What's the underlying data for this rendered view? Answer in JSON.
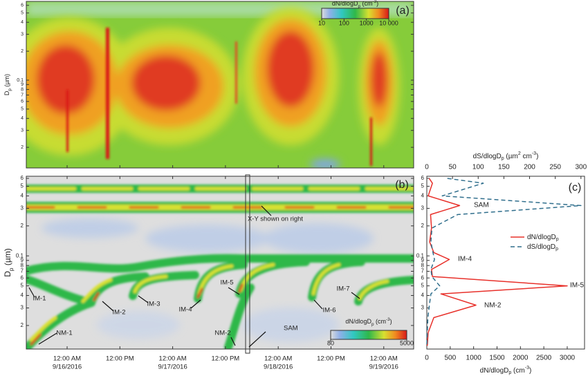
{
  "chart_data": [
    {
      "type": "heatmap",
      "panel": "(a)",
      "ylabel": [
        "D",
        "p",
        " (µm)"
      ],
      "yscale": "log",
      "ylim": [
        0.0122,
        0.66
      ],
      "yticks": [
        {
          "value": 0.02,
          "label": "2"
        },
        {
          "value": 0.03,
          "label": "3"
        },
        {
          "value": 0.04,
          "label": "4"
        },
        {
          "value": 0.05,
          "label": "5"
        },
        {
          "value": 0.06,
          "label": "6"
        },
        {
          "value": 0.07,
          "label": "7"
        },
        {
          "value": 0.08,
          "label": "8"
        },
        {
          "value": 0.09,
          "label": "9"
        },
        0.1,
        {
          "value": 0.2,
          "label": "2"
        },
        {
          "value": 0.3,
          "label": "3"
        },
        {
          "value": 0.4,
          "label": "4"
        },
        {
          "value": 0.5,
          "label": "5"
        },
        {
          "value": 0.6,
          "label": "6"
        }
      ],
      "colorbar": {
        "label": [
          "dN/dlogD",
          "p",
          " (cm",
          "-3",
          ")"
        ],
        "lim": [
          10,
          10000
        ],
        "ticks": [
          10,
          100,
          1000,
          {
            "value": 10000,
            "label": "10 000"
          }
        ]
      }
    },
    {
      "type": "heatmap",
      "panel": "(b)",
      "ylabel": [
        "D",
        "p",
        " (µm)"
      ],
      "yscale": "log",
      "ylim": [
        0.0116,
        0.63
      ],
      "yticks": [
        {
          "value": 0.02,
          "label": "2"
        },
        {
          "value": 0.03,
          "label": "3"
        },
        {
          "value": 0.04,
          "label": "4"
        },
        {
          "value": 0.05,
          "label": "5"
        },
        {
          "value": 0.06,
          "label": "6"
        },
        {
          "value": 0.07,
          "label": "7"
        },
        {
          "value": 0.08,
          "label": "8"
        },
        {
          "value": 0.09,
          "label": "9"
        },
        0.1,
        {
          "value": 0.2,
          "label": "2"
        },
        {
          "value": 0.3,
          "label": "3"
        },
        {
          "value": 0.4,
          "label": "4"
        },
        {
          "value": 0.5,
          "label": "5"
        },
        {
          "value": 0.6,
          "label": "6"
        }
      ],
      "xlim": [
        "2016-09-15T14:43",
        "2016-09-19T06:48"
      ],
      "xticks": [
        {
          "value": "2016-09-16T00:00",
          "label": [
            "12:00 AM",
            "9/16/2016"
          ]
        },
        {
          "value": "2016-09-16T12:00",
          "label": [
            "12:00 PM"
          ]
        },
        {
          "value": "2016-09-17T00:00",
          "label": [
            "12:00 AM",
            "9/17/2016"
          ]
        },
        {
          "value": "2016-09-17T12:00",
          "label": [
            "12:00 PM"
          ]
        },
        {
          "value": "2016-09-18T00:00",
          "label": [
            "12:00 AM",
            "9/18/2016"
          ]
        },
        {
          "value": "2016-09-18T12:00",
          "label": [
            "12:00 PM"
          ]
        },
        {
          "value": "2016-09-19T00:00",
          "label": [
            "12:00 AM",
            "9/19/2016"
          ]
        }
      ],
      "annotations": [
        "IM-1",
        "IM-2",
        "IM-3",
        "IM-4",
        "IM-5",
        "IM-6",
        "IM-7",
        "NM-1",
        "NM-2",
        "SAM",
        "X-Y shown on right"
      ],
      "colorbar": {
        "label": [
          "dN/dlogD",
          "p",
          " (cm",
          "-3",
          ")"
        ],
        "lim": [
          80,
          5000
        ],
        "ticks": [
          80,
          5000
        ]
      }
    },
    {
      "type": "line",
      "panel": "(c)",
      "ylabel": null,
      "yscale": "log",
      "ylim": [
        0.0116,
        0.63
      ],
      "yticks": [
        {
          "value": 0.03,
          "label": "3"
        },
        {
          "value": 0.04,
          "label": "4"
        },
        {
          "value": 0.05,
          "label": "5"
        },
        {
          "value": 0.06,
          "label": "6"
        },
        {
          "value": 0.07,
          "label": "7"
        },
        {
          "value": 0.08,
          "label": "8"
        },
        {
          "value": 0.09,
          "label": "9"
        },
        0.1,
        {
          "value": 0.2,
          "label": "2"
        },
        {
          "value": 0.3,
          "label": "3"
        },
        {
          "value": 0.4,
          "label": "4"
        },
        {
          "value": 0.5,
          "label": "5"
        },
        {
          "value": 0.6,
          "label": "6"
        }
      ],
      "xlabel": [
        "dN/dlogD",
        "p",
        " (cm",
        "-3",
        ")"
      ],
      "xlim": [
        0,
        3370
      ],
      "xticks": [
        0,
        500,
        1000,
        1500,
        2000,
        2500,
        3000
      ],
      "x2label": [
        "dS/dlogD",
        "p",
        " (µm",
        "2",
        " cm",
        "-3",
        ")"
      ],
      "x2lim": [
        0,
        307
      ],
      "x2ticks": [
        0,
        50,
        100,
        150,
        200,
        250,
        300
      ],
      "y": [
        0.6,
        0.536,
        0.4,
        0.32,
        0.26,
        0.19,
        0.138,
        0.108,
        0.092,
        0.073,
        0.062,
        0.05,
        0.0415,
        0.032,
        0.024,
        0.017,
        0.0125
      ],
      "series": [
        {
          "name": [
            "dN/dlogD",
            "p"
          ],
          "color": "#e8302a",
          "values": [
            50,
            120,
            30,
            700,
            80,
            100,
            60,
            150,
            480,
            100,
            120,
            3000,
            300,
            1050,
            150,
            30,
            10
          ]
        },
        {
          "name": [
            "dS/dlogD",
            "p"
          ],
          "color": "#2f6e8c",
          "axis": "x2",
          "dash": true,
          "values": [
            40,
            110,
            30,
            300,
            60,
            10,
            8,
            12,
            15,
            8,
            10,
            25,
            8,
            5,
            2,
            1,
            0
          ]
        }
      ],
      "annotations": [
        "SAM",
        "IM-4",
        "IM-5",
        "NM-2"
      ]
    }
  ]
}
